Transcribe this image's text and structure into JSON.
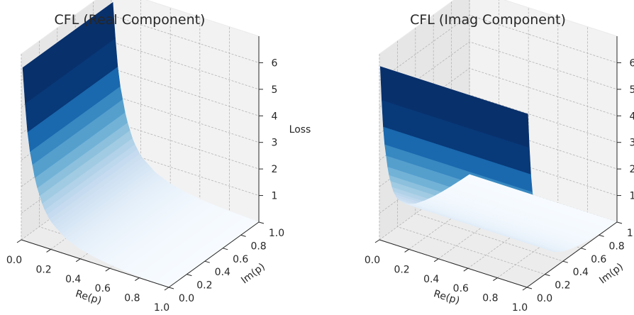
{
  "chart_data": [
    {
      "type": "surface",
      "title": "CFL (Real Component)",
      "xlabel": "Re(p)",
      "ylabel": "Im(p)",
      "zlabel": "Loss",
      "xlim": [
        0,
        1
      ],
      "ylim": [
        0,
        1
      ],
      "zlim": [
        0,
        7
      ],
      "x_ticks": [
        "0.0",
        "0.2",
        "0.4",
        "0.6",
        "0.8",
        "1.0"
      ],
      "y_ticks": [
        "0.0",
        "0.2",
        "0.4",
        "0.6",
        "0.8",
        "1.0"
      ],
      "z_ticks": [
        "1",
        "2",
        "3",
        "4",
        "5",
        "6"
      ],
      "colormap": "Blues",
      "depends_on": "x",
      "profile_x": [
        0.01,
        0.02,
        0.05,
        0.1,
        0.15,
        0.2,
        0.3,
        0.4,
        0.5,
        0.6,
        0.7,
        0.8,
        0.9,
        1.0
      ],
      "profile_loss": [
        6.5,
        5.6,
        3.7,
        2.3,
        1.5,
        1.05,
        0.6,
        0.37,
        0.24,
        0.15,
        0.09,
        0.05,
        0.02,
        0.0
      ]
    },
    {
      "type": "surface",
      "title": "CFL (Imag Component)",
      "xlabel": "Re(p)",
      "ylabel": "Im(p)",
      "zlabel": "",
      "xlim": [
        0,
        1
      ],
      "ylim": [
        0,
        1
      ],
      "zlim": [
        0,
        7
      ],
      "x_ticks": [
        "0.0",
        "0.2",
        "0.4",
        "0.6",
        "0.8",
        "1.0"
      ],
      "y_ticks": [
        "0.0",
        "0.2",
        "0.4",
        "0.6",
        "0.8",
        "1.0"
      ],
      "z_ticks": [
        "1",
        "2",
        "3",
        "4",
        "5",
        "6"
      ],
      "colormap": "Blues",
      "depends_on": "y",
      "profile_y": [
        0.01,
        0.02,
        0.05,
        0.1,
        0.15,
        0.2,
        0.3,
        0.4,
        0.5,
        0.6,
        0.7,
        0.8,
        0.9,
        1.0
      ],
      "profile_loss": [
        6.5,
        5.6,
        3.7,
        2.3,
        1.5,
        1.05,
        0.6,
        0.37,
        0.24,
        0.15,
        0.09,
        0.05,
        0.02,
        0.0
      ]
    }
  ]
}
